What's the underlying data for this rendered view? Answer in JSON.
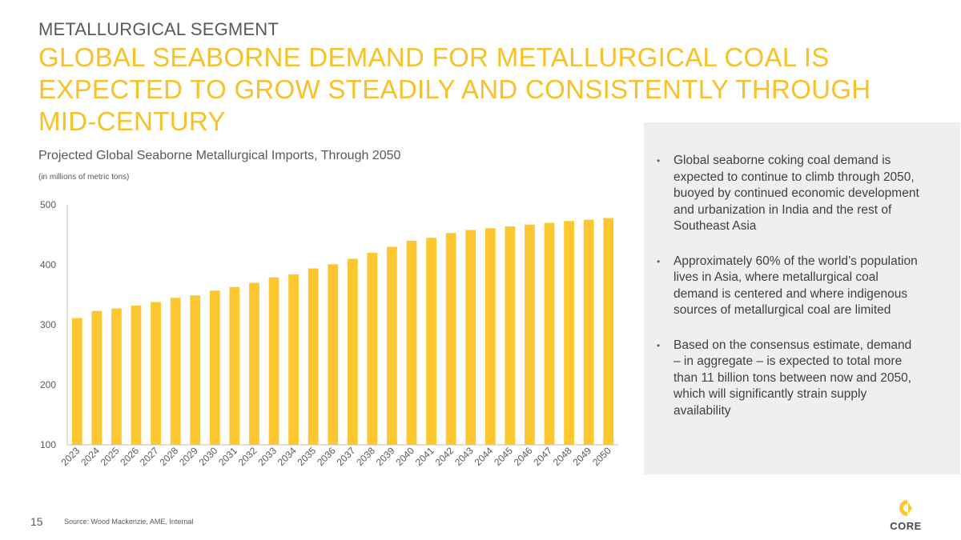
{
  "header": {
    "eyebrow": "METALLURGICAL SEGMENT",
    "headline": "GLOBAL SEABORNE DEMAND FOR METALLURGICAL COAL IS EXPECTED TO GROW STEADILY AND CONSISTENTLY THROUGH MID-CENTURY"
  },
  "chart_data": {
    "type": "bar",
    "title": "Projected Global Seaborne Metallurgical Imports, Through 2050",
    "subtitle": "(in millions of metric tons)",
    "xlabel": "",
    "ylabel": "",
    "categories": [
      "2023",
      "2024",
      "2025",
      "2026",
      "2027",
      "2028",
      "2029",
      "2030",
      "2031",
      "2032",
      "2033",
      "2034",
      "2035",
      "2036",
      "2037",
      "2038",
      "2039",
      "2040",
      "2041",
      "2042",
      "2043",
      "2044",
      "2045",
      "2046",
      "2047",
      "2048",
      "2049",
      "2050"
    ],
    "values": [
      311,
      323,
      327,
      332,
      338,
      345,
      349,
      357,
      363,
      370,
      379,
      384,
      394,
      401,
      410,
      420,
      430,
      440,
      445,
      453,
      458,
      461,
      464,
      467,
      470,
      473,
      475,
      478
    ],
    "ylim": [
      100,
      500
    ],
    "yticks": [
      100,
      200,
      300,
      400,
      500
    ],
    "grid": false,
    "bar_color": "#FDC82F"
  },
  "bullets": [
    "Global seaborne coking coal demand is expected to continue to climb through 2050, buoyed by continued economic development and urbanization in India and the rest of Southeast Asia",
    "Approximately 60% of the world’s population lives in Asia, where metallurgical coal demand is centered and where indigenous sources of metallurgical coal are limited",
    "Based on the consensus estimate, demand – in aggregate – is expected to total more than 11 billion tons between now and 2050, which will significantly strain supply availability"
  ],
  "bullet_marker": "•",
  "footer": {
    "page_number": "15",
    "source": "Source: Wood Mackenzie, AME, Internal"
  },
  "logo": {
    "text": "CORE",
    "color": "#FDC82F"
  }
}
